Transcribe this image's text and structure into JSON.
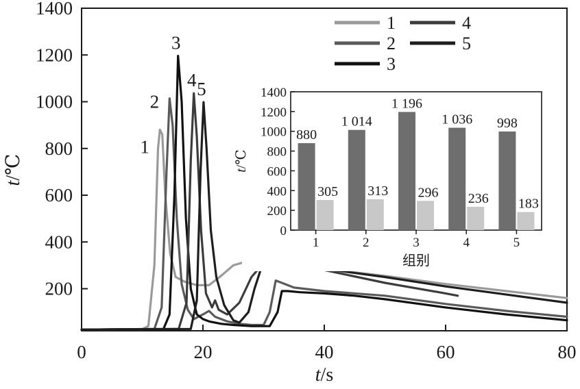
{
  "chart_data": [
    {
      "type": "line",
      "title": "",
      "xlabel": "t/s",
      "ylabel": "t/℃",
      "xlim": [
        0,
        80
      ],
      "ylim": [
        20,
        1400
      ],
      "xticks": [
        0,
        20,
        40,
        60,
        80
      ],
      "yticks": [
        200,
        400,
        600,
        800,
        1000,
        1200,
        1400
      ],
      "grid": false,
      "legend_placement": "top-right",
      "peak_labels": [
        "1",
        "2",
        "3",
        "4",
        "5"
      ],
      "series": [
        {
          "name": "1",
          "color": "#9a9a9a",
          "points": [
            [
              0,
              25
            ],
            [
              10,
              27
            ],
            [
              11,
              40
            ],
            [
              12,
              300
            ],
            [
              12.6,
              800
            ],
            [
              12.9,
              880
            ],
            [
              13.3,
              860
            ],
            [
              13.8,
              600
            ],
            [
              14.6,
              350
            ],
            [
              15.5,
              250
            ],
            [
              17,
              230
            ],
            [
              19,
              215
            ],
            [
              21,
              215
            ],
            [
              23,
              255
            ],
            [
              25,
              300
            ],
            [
              27,
              315
            ],
            [
              30,
              310
            ],
            [
              35,
              295
            ],
            [
              40,
              285
            ],
            [
              50,
              255
            ],
            [
              60,
              220
            ],
            [
              70,
              190
            ],
            [
              80,
              160
            ]
          ]
        },
        {
          "name": "2",
          "color": "#5a5a5a",
          "points": [
            [
              0,
              25
            ],
            [
              12,
              28
            ],
            [
              13.2,
              120
            ],
            [
              14,
              700
            ],
            [
              14.5,
              1014
            ],
            [
              15,
              900
            ],
            [
              15.7,
              500
            ],
            [
              16.5,
              220
            ],
            [
              17.5,
              110
            ],
            [
              18.5,
              70
            ],
            [
              20,
              90
            ],
            [
              21,
              105
            ],
            [
              22,
              80
            ],
            [
              24,
              60
            ],
            [
              26,
              50
            ],
            [
              28,
              45
            ],
            [
              30,
              45
            ],
            [
              31,
              100
            ],
            [
              32,
              235
            ],
            [
              33,
              225
            ],
            [
              35,
              205
            ],
            [
              40,
              190
            ],
            [
              50,
              170
            ],
            [
              60,
              135
            ],
            [
              70,
              105
            ],
            [
              80,
              80
            ]
          ]
        },
        {
          "name": "3",
          "color": "#111111",
          "points": [
            [
              0,
              25
            ],
            [
              13.5,
              28
            ],
            [
              14.5,
              90
            ],
            [
              15.3,
              600
            ],
            [
              15.9,
              1196
            ],
            [
              16.5,
              1000
            ],
            [
              17.2,
              500
            ],
            [
              18,
              200
            ],
            [
              19,
              90
            ],
            [
              20,
              70
            ],
            [
              21,
              60
            ],
            [
              23,
              50
            ],
            [
              25,
              45
            ],
            [
              28,
              40
            ],
            [
              31,
              40
            ],
            [
              32.3,
              100
            ],
            [
              33,
              190
            ],
            [
              34,
              190
            ],
            [
              36,
              185
            ],
            [
              40,
              180
            ],
            [
              45,
              170
            ],
            [
              50,
              155
            ],
            [
              60,
              120
            ],
            [
              70,
              90
            ],
            [
              80,
              65
            ]
          ]
        },
        {
          "name": "4",
          "color": "#3c3c3c",
          "points": [
            [
              0,
              25
            ],
            [
              16,
              28
            ],
            [
              17.3,
              140
            ],
            [
              18,
              750
            ],
            [
              18.5,
              1036
            ],
            [
              19,
              850
            ],
            [
              19.7,
              450
            ],
            [
              20.5,
              180
            ],
            [
              21.5,
              120
            ],
            [
              22,
              150
            ],
            [
              22.6,
              110
            ],
            [
              24,
              90
            ],
            [
              26,
              140
            ],
            [
              28,
              250
            ],
            [
              30,
              310
            ],
            [
              33,
              310
            ],
            [
              40,
              280
            ],
            [
              50,
              225
            ],
            [
              60,
              180
            ],
            [
              62,
              170
            ]
          ]
        },
        {
          "name": "5",
          "color": "#1e1e1e",
          "points": [
            [
              0,
              25
            ],
            [
              18,
              28
            ],
            [
              19,
              150
            ],
            [
              19.6,
              700
            ],
            [
              20.1,
              998
            ],
            [
              20.6,
              800
            ],
            [
              21.3,
              450
            ],
            [
              22.2,
              250
            ],
            [
              23.5,
              130
            ],
            [
              25,
              65
            ],
            [
              26,
              55
            ],
            [
              27.5,
              100
            ],
            [
              28.5,
              200
            ],
            [
              29.5,
              280
            ],
            [
              31,
              300
            ],
            [
              35,
              295
            ],
            [
              40,
              285
            ],
            [
              50,
              250
            ],
            [
              60,
              210
            ],
            [
              70,
              175
            ],
            [
              80,
              140
            ]
          ]
        }
      ]
    },
    {
      "type": "bar",
      "title": "",
      "xlabel": "组别",
      "ylabel": "t/℃",
      "categories": [
        "1",
        "2",
        "3",
        "4",
        "5"
      ],
      "ylim": [
        0,
        1400
      ],
      "yticks": [
        0,
        200,
        400,
        600,
        800,
        1000,
        1200,
        1400
      ],
      "grid": false,
      "series": [
        {
          "color": "#6e6e6e",
          "values": [
            880,
            1014,
            1196,
            1036,
            998
          ],
          "labels": [
            "880",
            "1 014",
            "1 196",
            "1 036",
            "998"
          ]
        },
        {
          "color": "#c8c8c8",
          "values": [
            305,
            313,
            296,
            236,
            183
          ],
          "labels": [
            "305",
            "313",
            "296",
            "236",
            "183"
          ]
        }
      ]
    }
  ]
}
